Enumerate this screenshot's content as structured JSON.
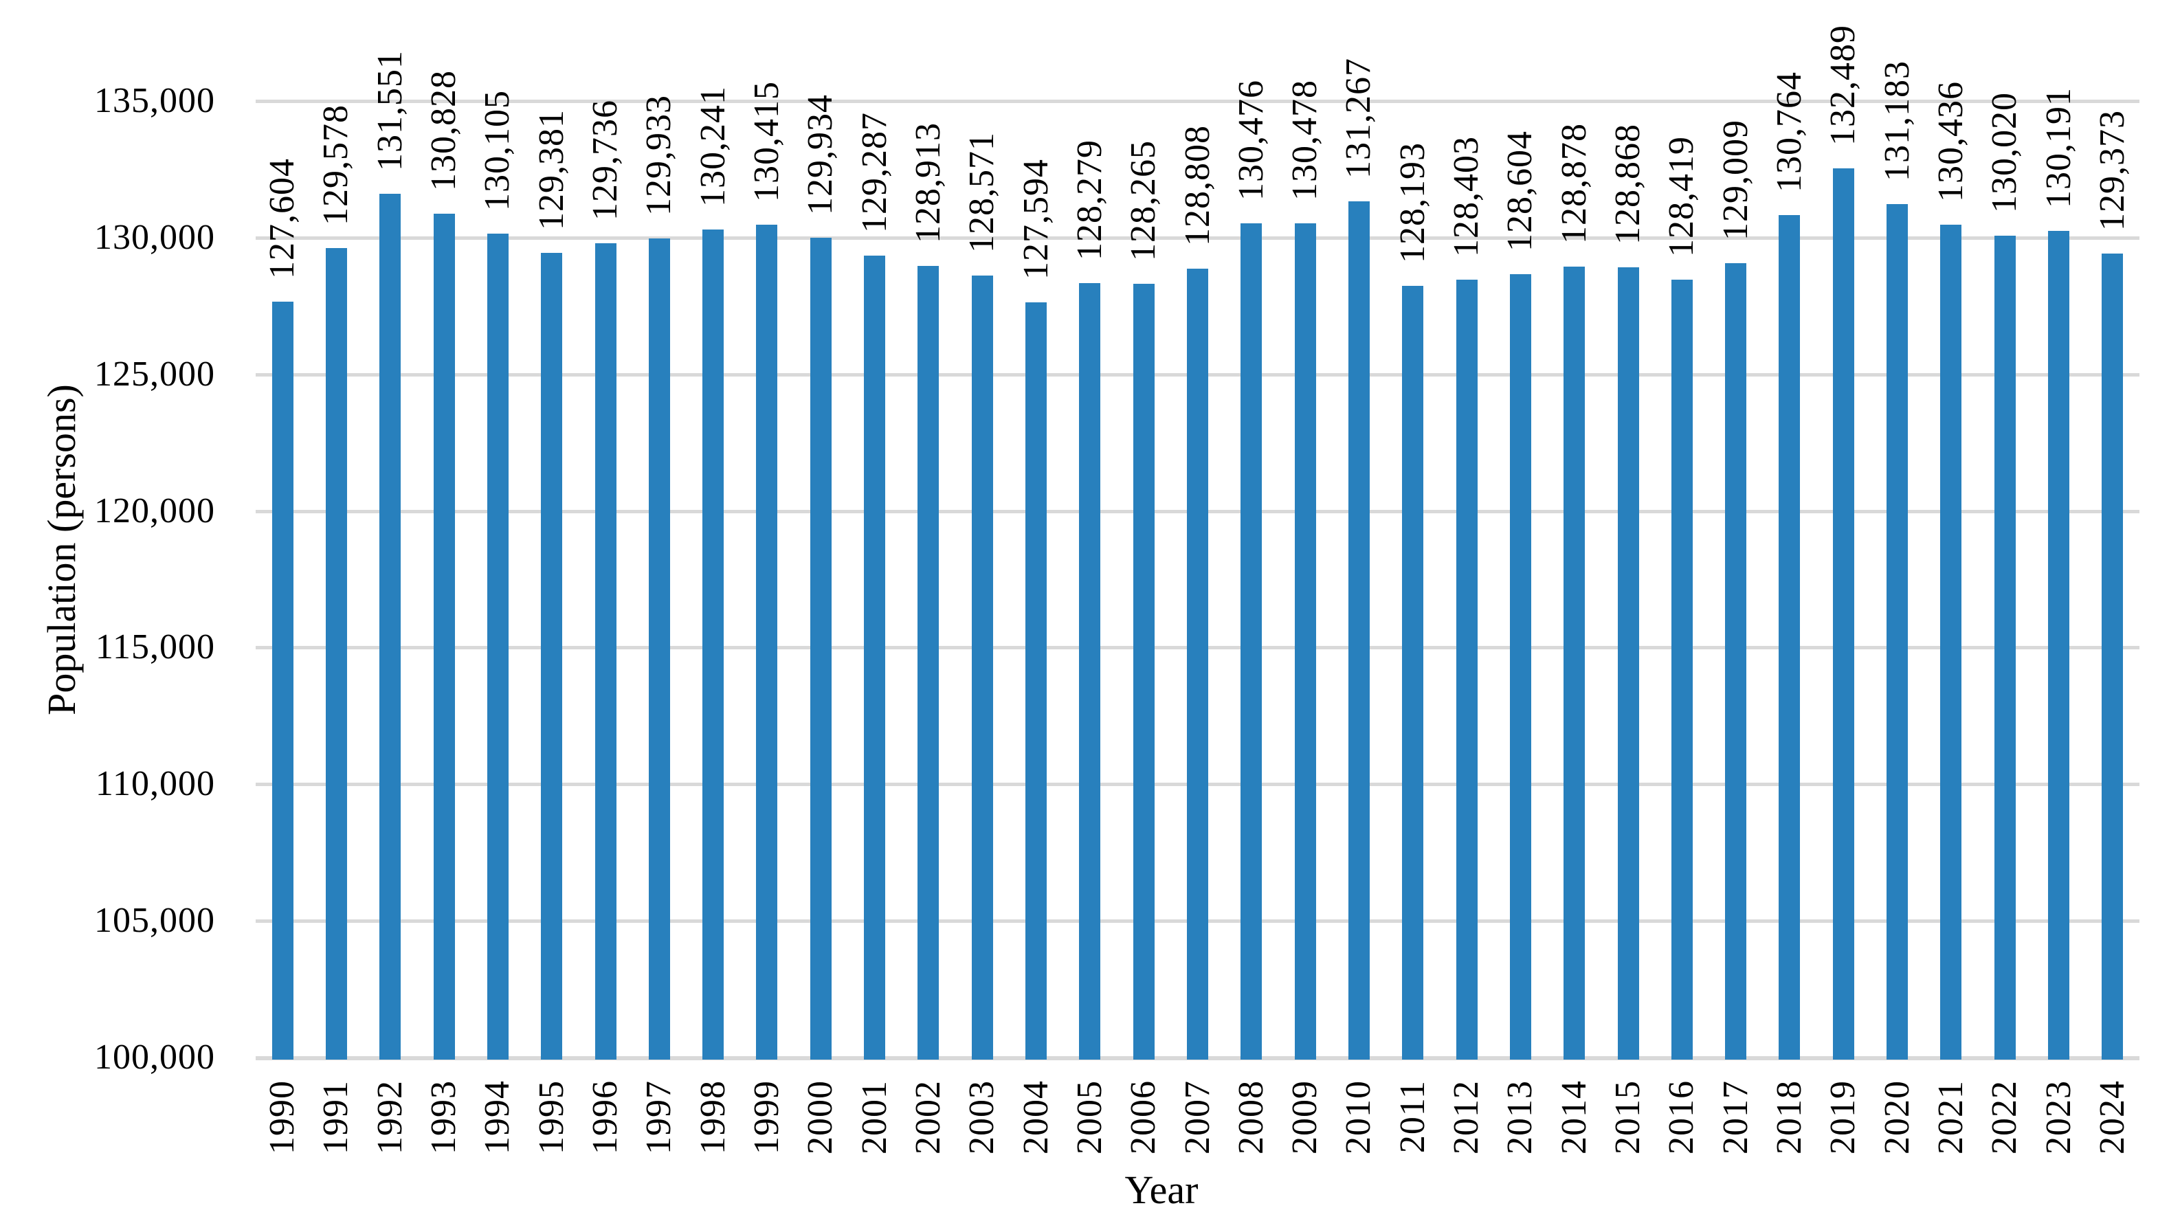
{
  "chart_data": {
    "type": "bar",
    "xlabel": "Year",
    "ylabel": "Population (persons)",
    "categories": [
      "1990",
      "1991",
      "1992",
      "1993",
      "1994",
      "1995",
      "1996",
      "1997",
      "1998",
      "1999",
      "2000",
      "2001",
      "2002",
      "2003",
      "2004",
      "2005",
      "2006",
      "2007",
      "2008",
      "2009",
      "2010",
      "2011",
      "2012",
      "2013",
      "2014",
      "2015",
      "2016",
      "2017",
      "2018",
      "2019",
      "2020",
      "2021",
      "2022",
      "2023",
      "2024"
    ],
    "values": [
      127604,
      129578,
      131551,
      130828,
      130105,
      129381,
      129736,
      129933,
      130241,
      130415,
      129934,
      129287,
      128913,
      128571,
      127594,
      128279,
      128265,
      128808,
      130476,
      130478,
      131267,
      128193,
      128403,
      128604,
      128878,
      128868,
      128419,
      129009,
      130764,
      132489,
      131183,
      130436,
      130020,
      130191,
      129373
    ],
    "value_labels": [
      "127,604",
      "129,578",
      "131,551",
      "130,828",
      "130,105",
      "129,381",
      "129,736",
      "129,933",
      "130,241",
      "130,415",
      "129,934",
      "129,287",
      "128,913",
      "128,571",
      "127,594",
      "128,279",
      "128,265",
      "128,808",
      "130,476",
      "130,478",
      "131,267",
      "128,193",
      "128,403",
      "128,604",
      "128,878",
      "128,868",
      "128,419",
      "129,009",
      "130,764",
      "132,489",
      "131,183",
      "130,436",
      "130,020",
      "130,191",
      "129,373"
    ],
    "ylim": [
      100000,
      135000
    ],
    "ytick_interval": 5000,
    "ytick_labels": [
      "100,000",
      "105,000",
      "110,000",
      "115,000",
      "120,000",
      "125,000",
      "130,000",
      "135,000"
    ],
    "grid": "horizontal",
    "legend": "none",
    "bar_color": "#2880BD",
    "gridline_color": "#D9D9D9",
    "label_rotation_deg": 90
  }
}
